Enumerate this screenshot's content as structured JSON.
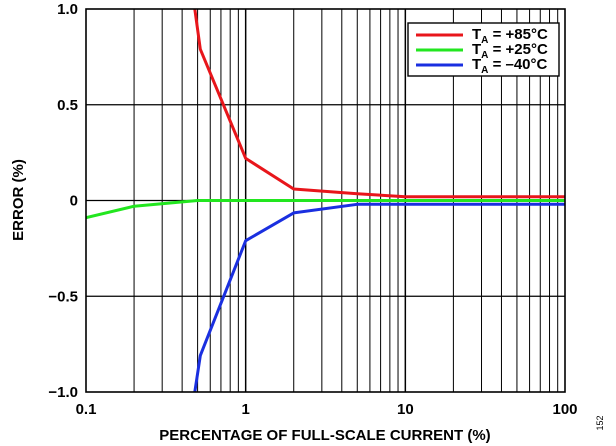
{
  "chart_data": {
    "type": "line",
    "xlabel": "PERCENTAGE OF FULL-SCALE CURRENT (%)",
    "ylabel": "ERROR (%)",
    "x_scale": "log",
    "xlim": [
      0.1,
      100
    ],
    "ylim": [
      -1.0,
      1.0
    ],
    "x_ticks": [
      {
        "value": 0.1,
        "label": "0.1"
      },
      {
        "value": 1,
        "label": "1"
      },
      {
        "value": 10,
        "label": "10"
      },
      {
        "value": 100,
        "label": "100"
      }
    ],
    "y_ticks": [
      {
        "value": 1.0,
        "label": "1.0"
      },
      {
        "value": 0.5,
        "label": "0.5"
      },
      {
        "value": 0,
        "label": "0"
      },
      {
        "value": -0.5,
        "label": "−0.5"
      },
      {
        "value": -1.0,
        "label": "−1.0"
      }
    ],
    "grid": true,
    "legend_position": "top-right",
    "series": [
      {
        "name": "T_A = +85°C",
        "legend_main": "T",
        "legend_sub": "A",
        "legend_rest": " = +85°C",
        "color": "#e8161b",
        "x": [
          0.48,
          0.52,
          1,
          2,
          5,
          10,
          20,
          50,
          100
        ],
        "y": [
          1.0,
          0.79,
          0.22,
          0.06,
          0.035,
          0.02,
          0.02,
          0.02,
          0.02
        ]
      },
      {
        "name": "T_A = +25°C",
        "legend_main": "T",
        "legend_sub": "A",
        "legend_rest": " = +25°C",
        "color": "#22e61f",
        "x": [
          0.1,
          0.2,
          0.5,
          1,
          2,
          5,
          10,
          20,
          50,
          100
        ],
        "y": [
          -0.09,
          -0.03,
          0.0,
          0.0,
          0.0,
          0.0,
          0.0,
          0.0,
          0.0,
          0.0
        ]
      },
      {
        "name": "T_A = –40°C",
        "legend_main": "T",
        "legend_sub": "A",
        "legend_rest": " = –40°C",
        "color": "#1a2fe0",
        "x": [
          0.48,
          0.52,
          1,
          2,
          5,
          10,
          20,
          50,
          100
        ],
        "y": [
          -1.0,
          -0.81,
          -0.21,
          -0.065,
          -0.02,
          -0.02,
          -0.02,
          -0.02,
          -0.02
        ]
      }
    ]
  },
  "figure_id": "152"
}
